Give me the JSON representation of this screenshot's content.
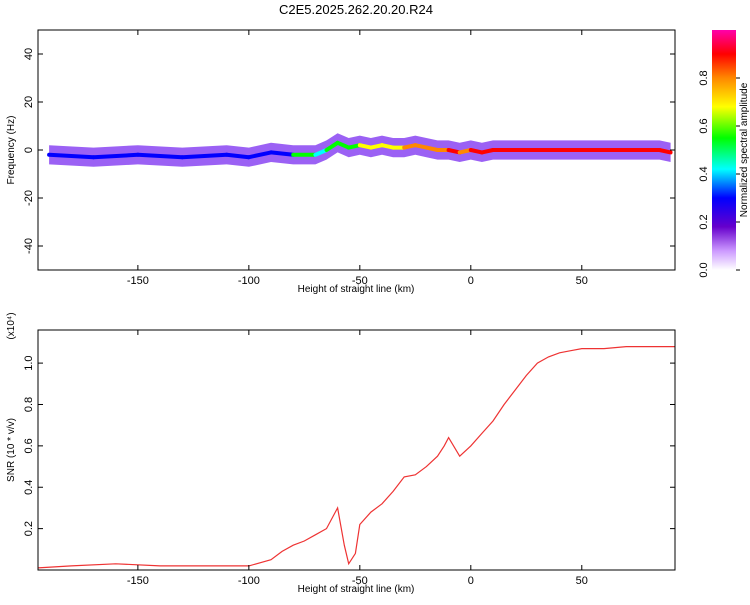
{
  "chart_data": [
    {
      "type": "heatmap",
      "title": "C2E5.2025.262.20.20.R24",
      "xlabel": "Height of straight line (km)",
      "ylabel": "Frequency (Hz)",
      "xlim": [
        -195,
        92
      ],
      "ylim": [
        -50,
        50
      ],
      "xticks": [
        -150,
        -100,
        -50,
        0,
        50
      ],
      "yticks": [
        -40,
        -20,
        0,
        20,
        40
      ],
      "colorbar": {
        "label": "Normalized spectral amplitude",
        "range": [
          0,
          1
        ],
        "ticks": [
          0.0,
          0.2,
          0.4,
          0.6,
          0.8
        ],
        "colormap": [
          "#ffffff",
          "#cc99ff",
          "#6600cc",
          "#0000ff",
          "#00ffff",
          "#00ff00",
          "#ffff00",
          "#ff8800",
          "#ff0000",
          "#ff00aa"
        ]
      },
      "series": [
        {
          "x": [
            -190,
            -170,
            -150,
            -130,
            -110,
            -100,
            -90,
            -80,
            -70,
            -65,
            -60,
            -55,
            -50,
            -45,
            -40,
            -35,
            -30,
            -25,
            -20,
            -15,
            -10,
            -5,
            0,
            5,
            10,
            20,
            30,
            40,
            50,
            60,
            70,
            80,
            85,
            90
          ],
          "y": [
            -2,
            -3,
            -2,
            -3,
            -2,
            -3,
            -1,
            -2,
            -2,
            0,
            3,
            1,
            2,
            1,
            2,
            1,
            1,
            2,
            1,
            0,
            0,
            -1,
            0,
            -1,
            0,
            0,
            0,
            0,
            0,
            0,
            0,
            0,
            0,
            -1
          ],
          "amplitude": [
            0.3,
            0.35,
            0.3,
            0.35,
            0.3,
            0.3,
            0.4,
            0.55,
            0.5,
            0.55,
            0.6,
            0.65,
            0.7,
            0.75,
            0.7,
            0.75,
            0.8,
            0.85,
            0.8,
            0.85,
            0.9,
            0.85,
            0.9,
            0.9,
            0.9,
            0.9,
            0.9,
            0.9,
            0.9,
            0.9,
            0.92,
            0.95,
            0.95,
            1.0
          ]
        }
      ]
    },
    {
      "type": "line",
      "xlabel": "Height of straight line (km)",
      "ylabel": "SNR (10 * v/v)",
      "y_multiplier": "(x10⁴)",
      "xlim": [
        -195,
        92
      ],
      "ylim": [
        0,
        1.16
      ],
      "xticks": [
        -150,
        -100,
        -50,
        0,
        50
      ],
      "yticks": [
        0.2,
        0.4,
        0.6,
        0.8,
        1.0
      ],
      "line_color": "#ee3333",
      "series": [
        {
          "x": [
            -195,
            -180,
            -160,
            -140,
            -120,
            -100,
            -90,
            -85,
            -80,
            -75,
            -70,
            -65,
            -60,
            -57,
            -55,
            -52,
            -50,
            -45,
            -40,
            -35,
            -30,
            -25,
            -20,
            -15,
            -12,
            -10,
            -5,
            0,
            5,
            10,
            15,
            20,
            25,
            30,
            35,
            40,
            45,
            50,
            60,
            70,
            80,
            92
          ],
          "y": [
            0.01,
            0.02,
            0.03,
            0.02,
            0.02,
            0.02,
            0.05,
            0.09,
            0.12,
            0.14,
            0.17,
            0.2,
            0.3,
            0.12,
            0.03,
            0.08,
            0.22,
            0.28,
            0.32,
            0.38,
            0.45,
            0.46,
            0.5,
            0.55,
            0.6,
            0.64,
            0.55,
            0.6,
            0.66,
            0.72,
            0.8,
            0.87,
            0.94,
            1.0,
            1.03,
            1.05,
            1.06,
            1.07,
            1.07,
            1.08,
            1.08,
            1.08
          ]
        }
      ]
    }
  ]
}
